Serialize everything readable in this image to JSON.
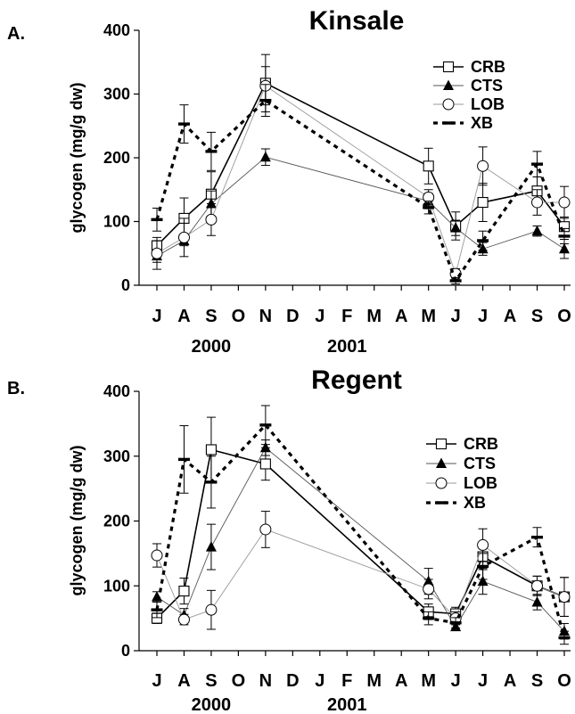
{
  "chart_data": [
    {
      "type": "line",
      "panel_label": "A.",
      "title": "Kinsale",
      "ylabel": "glycogen (mg/g dw)",
      "ylim": [
        0,
        400
      ],
      "yticks": [
        0,
        100,
        200,
        300,
        400
      ],
      "month_ticks": [
        "J",
        "A",
        "S",
        "O",
        "N",
        "D",
        "J",
        "F",
        "M",
        "A",
        "M",
        "J",
        "J",
        "A",
        "S",
        "O"
      ],
      "year_labels": [
        {
          "text": "2000",
          "month_index": 2
        },
        {
          "text": "2001",
          "month_index": 7
        }
      ],
      "x_domain": [
        0,
        15
      ],
      "legend_position": "top-right",
      "series": [
        {
          "name": "CRB",
          "marker": "square",
          "line": "solid-black",
          "x": [
            0,
            1,
            2,
            4,
            10,
            11,
            12,
            14,
            15
          ],
          "y": [
            62,
            105,
            143,
            317,
            187,
            93,
            130,
            148,
            92
          ],
          "err": [
            8,
            32,
            35,
            45,
            28,
            22,
            30,
            22,
            15
          ]
        },
        {
          "name": "CTS",
          "marker": "triangle",
          "line": "solid-thin",
          "x": [
            0,
            1,
            2,
            4,
            10,
            11,
            12,
            14,
            15
          ],
          "y": [
            46,
            70,
            128,
            201,
            132,
            90,
            57,
            85,
            57
          ],
          "err": [
            10,
            8,
            20,
            13,
            12,
            12,
            10,
            8,
            15
          ]
        },
        {
          "name": "LOB",
          "marker": "circle",
          "line": "solid-gray",
          "x": [
            0,
            1,
            2,
            4,
            10,
            11,
            12,
            14,
            15
          ],
          "y": [
            50,
            75,
            103,
            313,
            138,
            18,
            187,
            130,
            130
          ],
          "err": [
            25,
            30,
            25,
            30,
            12,
            8,
            30,
            20,
            25
          ]
        },
        {
          "name": "XB",
          "marker": "dash",
          "line": "dashed-black",
          "x": [
            0,
            1,
            2,
            4,
            10,
            11,
            12,
            14,
            15
          ],
          "y": [
            103,
            253,
            210,
            290,
            122,
            7,
            70,
            190,
            77
          ],
          "err": [
            18,
            30,
            30,
            25,
            10,
            5,
            15,
            20,
            12
          ]
        }
      ]
    },
    {
      "type": "line",
      "panel_label": "B.",
      "title": "Regent",
      "ylabel": "glycogen (mg/g dw)",
      "ylim": [
        0,
        400
      ],
      "yticks": [
        0,
        100,
        200,
        300,
        400
      ],
      "month_ticks": [
        "J",
        "A",
        "S",
        "O",
        "N",
        "D",
        "J",
        "F",
        "M",
        "A",
        "M",
        "J",
        "J",
        "A",
        "S",
        "O"
      ],
      "year_labels": [
        {
          "text": "2000",
          "month_index": 2
        },
        {
          "text": "2001",
          "month_index": 7
        }
      ],
      "x_domain": [
        0,
        15
      ],
      "legend_position": "right",
      "series": [
        {
          "name": "CRB",
          "marker": "square",
          "line": "solid-black",
          "x": [
            0,
            1,
            2,
            4,
            10,
            11,
            12,
            14,
            15
          ],
          "y": [
            50,
            92,
            310,
            288,
            60,
            57,
            145,
            100,
            83
          ],
          "err": [
            8,
            20,
            50,
            25,
            12,
            10,
            20,
            15,
            30
          ]
        },
        {
          "name": "CTS",
          "marker": "triangle",
          "line": "solid-thin",
          "x": [
            0,
            1,
            2,
            4,
            10,
            11,
            12,
            14,
            15
          ],
          "y": [
            83,
            55,
            160,
            313,
            107,
            37,
            107,
            75,
            30
          ],
          "err": [
            8,
            10,
            35,
            12,
            20,
            5,
            20,
            12,
            12
          ]
        },
        {
          "name": "LOB",
          "marker": "circle",
          "line": "solid-gray",
          "x": [
            0,
            1,
            2,
            4,
            10,
            11,
            12,
            14,
            15
          ],
          "y": [
            147,
            48,
            63,
            187,
            95,
            50,
            163,
            100,
            83
          ],
          "err": [
            18,
            8,
            30,
            28,
            15,
            10,
            25,
            15,
            30
          ]
        },
        {
          "name": "XB",
          "marker": "dash",
          "line": "dashed-black",
          "x": [
            0,
            1,
            2,
            4,
            10,
            11,
            12,
            14,
            15
          ],
          "y": [
            63,
            295,
            260,
            348,
            50,
            43,
            130,
            175,
            20
          ],
          "err": [
            12,
            52,
            40,
            30,
            10,
            8,
            20,
            15,
            10
          ]
        }
      ]
    }
  ]
}
